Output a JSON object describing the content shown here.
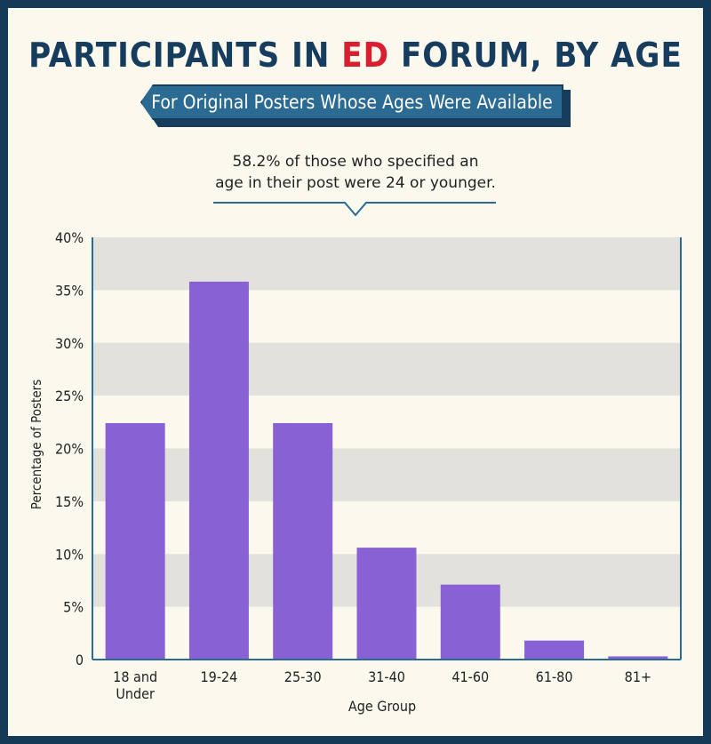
{
  "colors": {
    "background": "#fbf9ee",
    "frame": "#143a58",
    "title": "#173d5e",
    "accent": "#d91f2f",
    "banner": "#2a6a93",
    "bar": "#8862d4",
    "band": "#e2e1dc"
  },
  "header": {
    "title_pre": "PARTICIPANTS IN ",
    "title_accent": "ED",
    "title_post": " FORUM, BY AGE",
    "subtitle": "For Original Posters Whose Ages Were Available"
  },
  "callout": {
    "line1": "58.2% of those who specified an",
    "line2": "age in their post were 24 or younger."
  },
  "chart_data": {
    "type": "bar",
    "title": "PARTICIPANTS IN ED FORUM, BY AGE",
    "subtitle": "For Original Posters Whose Ages Were Available",
    "categories": [
      "18 and Under",
      "19-24",
      "25-30",
      "31-40",
      "41-60",
      "61-80",
      "81+"
    ],
    "category_lines": [
      [
        "18 and",
        "Under"
      ],
      [
        "19-24"
      ],
      [
        "25-30"
      ],
      [
        "31-40"
      ],
      [
        "41-60"
      ],
      [
        "61-80"
      ],
      [
        "81+"
      ]
    ],
    "values": [
      22.4,
      35.8,
      22.4,
      10.6,
      7.1,
      1.8,
      0.3
    ],
    "xlabel": "Age Group",
    "ylabel": "Percentage of Posters",
    "ylim": [
      0,
      40
    ],
    "yticks": [
      0,
      5,
      10,
      15,
      20,
      25,
      30,
      35,
      40
    ],
    "ytick_labels": [
      "0",
      "5%",
      "10%",
      "15%",
      "20%",
      "25%",
      "30%",
      "35%",
      "40%"
    ],
    "grid": "alternating horizontal bands",
    "legend": "none"
  }
}
